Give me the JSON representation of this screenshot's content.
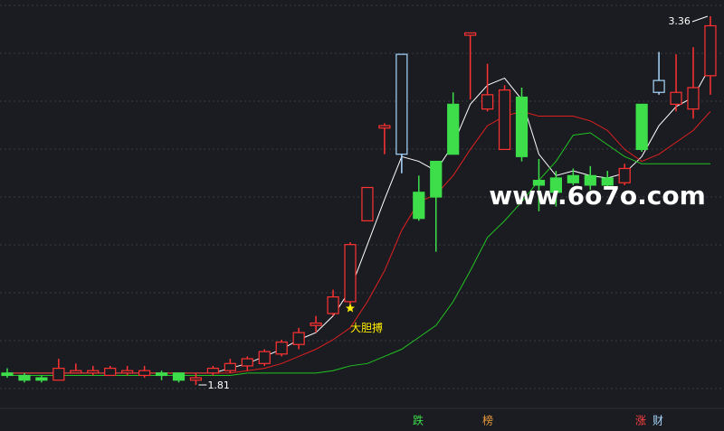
{
  "chart_data": {
    "type": "candlestick",
    "open": [
      1.86,
      1.85,
      1.84,
      1.83,
      1.86,
      1.86,
      1.85,
      1.86,
      1.85,
      1.86,
      1.86,
      1.83,
      1.86,
      1.87,
      1.89,
      1.9,
      1.94,
      1.98,
      2.06,
      2.11,
      2.16,
      2.5,
      2.89,
      3.2,
      2.62,
      2.75,
      2.99,
      3.28,
      2.97,
      2.8,
      3.02,
      2.67,
      2.68,
      2.69,
      2.69,
      2.68,
      2.66,
      2.99,
      3.04,
      2.99,
      2.97,
      3.11
    ],
    "high": [
      1.88,
      1.86,
      1.85,
      1.92,
      1.9,
      1.89,
      1.89,
      1.89,
      1.89,
      1.87,
      1.86,
      1.86,
      1.89,
      1.92,
      1.93,
      1.96,
      2.0,
      2.05,
      2.1,
      2.21,
      2.41,
      2.64,
      2.91,
      3.2,
      2.69,
      2.75,
      3.04,
      3.29,
      3.16,
      3.07,
      3.06,
      2.76,
      2.71,
      2.72,
      2.73,
      2.71,
      2.74,
      2.99,
      3.21,
      3.2,
      3.23,
      3.36
    ],
    "low": [
      1.84,
      1.82,
      1.82,
      1.83,
      1.86,
      1.85,
      1.85,
      1.85,
      1.84,
      1.83,
      1.82,
      1.81,
      1.85,
      1.86,
      1.87,
      1.89,
      1.93,
      1.96,
      2.03,
      2.1,
      2.15,
      2.5,
      2.78,
      2.7,
      2.5,
      2.37,
      2.78,
      3.01,
      2.96,
      2.8,
      2.75,
      2.54,
      2.56,
      2.65,
      2.63,
      2.64,
      2.65,
      2.79,
      3.03,
      2.96,
      2.93,
      3.03
    ],
    "close": [
      1.85,
      1.83,
      1.83,
      1.88,
      1.87,
      1.87,
      1.88,
      1.87,
      1.87,
      1.85,
      1.83,
      1.84,
      1.88,
      1.9,
      1.92,
      1.95,
      1.99,
      2.03,
      2.07,
      2.18,
      2.4,
      2.64,
      2.9,
      2.78,
      2.51,
      2.6,
      2.78,
      3.29,
      3.03,
      3.05,
      2.77,
      2.65,
      2.62,
      2.66,
      2.65,
      2.65,
      2.72,
      2.8,
      3.09,
      3.04,
      3.06,
      3.32
    ],
    "colors": [
      "#3dde4a",
      "#3dde4a",
      "#3dde4a",
      "#ff3232",
      "#ff3232",
      "#ff3232",
      "#ff3232",
      "#ff3232",
      "#ff3232",
      "#3dde4a",
      "#3dde4a",
      "#ff3232",
      "#ff3232",
      "#ff3232",
      "#ff3232",
      "#ff3232",
      "#ff3232",
      "#ff3232",
      "#ff3232",
      "#ff3232",
      "#ff3232",
      "#ff3232",
      "#ff3232",
      "#a8d8ff",
      "#3dde4a",
      "#3dde4a",
      "#3dde4a",
      "#ff3232",
      "#ff3232",
      "#ff3232",
      "#3dde4a",
      "#3dde4a",
      "#3dde4a",
      "#3dde4a",
      "#3dde4a",
      "#3dde4a",
      "#ff3232",
      "#3dde4a",
      "#a8d8ff",
      "#ff3232",
      "#ff3232",
      "#ff3232"
    ],
    "series": [
      {
        "color": "#ffffff",
        "values": [
          1.86,
          1.86,
          1.86,
          1.86,
          1.86,
          1.86,
          1.86,
          1.86,
          1.86,
          1.86,
          1.86,
          1.86,
          1.86,
          1.88,
          1.9,
          1.93,
          1.96,
          2.0,
          2.03,
          2.1,
          2.21,
          2.4,
          2.59,
          2.77,
          2.75,
          2.71,
          2.82,
          2.99,
          3.07,
          3.1,
          3.01,
          2.78,
          2.69,
          2.71,
          2.69,
          2.68,
          2.7,
          2.77,
          2.9,
          2.98,
          3.02,
          3.15
        ]
      },
      {
        "color": "#e02020",
        "values": [
          1.86,
          1.86,
          1.86,
          1.86,
          1.86,
          1.86,
          1.86,
          1.86,
          1.86,
          1.86,
          1.86,
          1.86,
          1.86,
          1.86,
          1.87,
          1.88,
          1.9,
          1.93,
          1.96,
          2.0,
          2.05,
          2.16,
          2.29,
          2.46,
          2.58,
          2.61,
          2.69,
          2.8,
          2.9,
          2.94,
          2.96,
          2.94,
          2.94,
          2.94,
          2.92,
          2.88,
          2.8,
          2.75,
          2.78,
          2.83,
          2.88,
          2.96
        ]
      },
      {
        "color": "#22c322",
        "values": [
          1.85,
          1.85,
          1.85,
          1.85,
          1.85,
          1.85,
          1.85,
          1.85,
          1.85,
          1.85,
          1.85,
          1.85,
          1.85,
          1.85,
          1.86,
          1.86,
          1.86,
          1.86,
          1.86,
          1.87,
          1.89,
          1.9,
          1.93,
          1.96,
          2.01,
          2.06,
          2.16,
          2.29,
          2.43,
          2.5,
          2.58,
          2.67,
          2.75,
          2.86,
          2.87,
          2.82,
          2.77,
          2.74,
          2.74,
          2.74,
          2.74,
          2.74
        ]
      }
    ],
    "max_label": 3.36,
    "min_label": 1.81,
    "signal": "大胆搏",
    "watermark": "www.6o7o.com",
    "tabs": [
      "跌",
      "榜",
      "涨",
      "财"
    ]
  }
}
